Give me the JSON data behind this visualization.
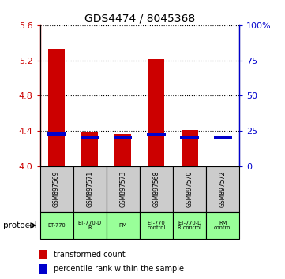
{
  "title": "GDS4474 / 8045368",
  "samples": [
    "GSM897569",
    "GSM897571",
    "GSM897573",
    "GSM897568",
    "GSM897570",
    "GSM897572"
  ],
  "red_values": [
    5.33,
    4.38,
    4.36,
    5.21,
    4.41,
    4.0
  ],
  "blue_values": [
    4.365,
    4.315,
    4.325,
    4.355,
    4.325,
    4.33
  ],
  "red_base": 4.0,
  "ylim_left": [
    4.0,
    5.6
  ],
  "yticks_left": [
    4.0,
    4.4,
    4.8,
    5.2,
    5.6
  ],
  "yticks_right": [
    0,
    25,
    50,
    75,
    100
  ],
  "right_labels": [
    "0",
    "25",
    "50",
    "75",
    "100%"
  ],
  "red_color": "#cc0000",
  "blue_color": "#0000cc",
  "bar_width": 0.5,
  "protocols": [
    "ET-770",
    "ET-770-D\nR",
    "RM",
    "ET-770\ncontrol",
    "ET-770-D\nR control",
    "RM\ncontrol"
  ],
  "protocol_bg": "#99ff99",
  "sample_bg": "#cccccc",
  "legend_red": "transformed count",
  "legend_blue": "percentile rank within the sample"
}
